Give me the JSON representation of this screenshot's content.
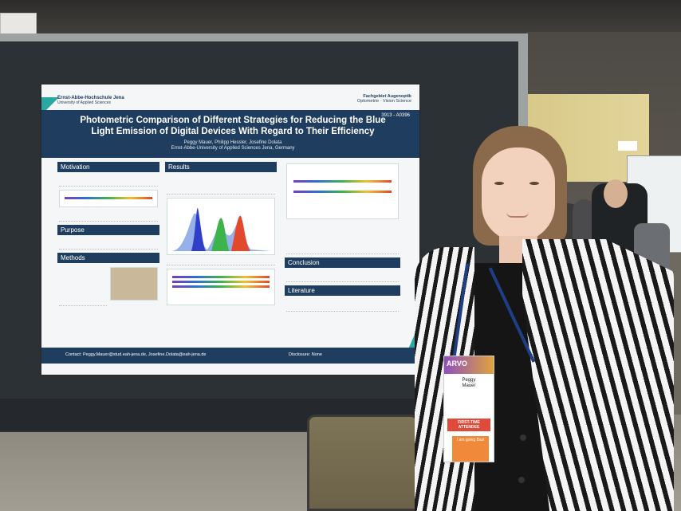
{
  "poster": {
    "university": "Ernst-Abbe-Hochschule Jena",
    "university_sub": "University of Applied Sciences",
    "department": "Fachgebiet Augenoptik",
    "department_sub": "Optometrie · Vision Science",
    "code": "3913 - A0396",
    "title": "Photometric Comparison of Different Strategies for Reducing the Blue Light Emission of Digital Devices With Regard to Their Efficiency",
    "authors": "Peggy Mauer, Philipp Hessler, Josefine Dolata",
    "affiliation": "Ernst-Abbe-University of Applied Sciences Jena, Germany",
    "sections": {
      "motivation": "Motivation",
      "purpose": "Purpose",
      "methods": "Methods",
      "results": "Results",
      "conclusion": "Conclusion",
      "literature": "Literature"
    },
    "contact": "Contact: Peggy.Mauer@stud.eah-jena.de, Josefine.Dolata@eah-jena.de",
    "disclosure": "Disclosure: None"
  },
  "badge": {
    "event": "ARVO",
    "name_first": "Peggy",
    "name_last": "Mauer",
    "first_time": "FIRST-TIME ATTENDEE",
    "sticker": "I am going Bazi"
  },
  "colors": {
    "poster_navy": "#1f3e5f",
    "poster_teal": "#2aa7a0"
  }
}
